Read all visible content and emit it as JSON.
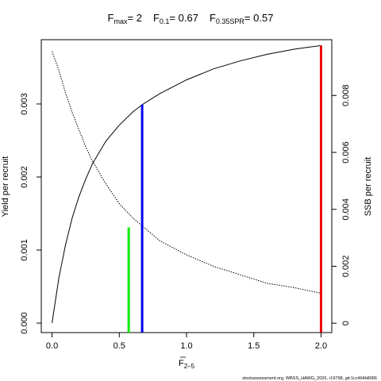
{
  "chart_data": {
    "type": "line",
    "title": {
      "fmax": {
        "symbol": "F",
        "sub": "max",
        "value": "= 2"
      },
      "f01": {
        "symbol": "F",
        "sub": "0.1",
        "value": "= 0.67"
      },
      "fspr": {
        "symbol": "F",
        "sub": "0.35SPR",
        "value": "= 0.57"
      }
    },
    "xlabel": {
      "symbol": "F",
      "sub": "2–5"
    },
    "ylabel_left": "Yield per recruit",
    "ylabel_right": "SSB per recruit",
    "xlim": [
      -0.08,
      2.08
    ],
    "ylim_left": [
      -0.00013,
      0.00388
    ],
    "ylim_right": [
      -0.00033,
      0.00996
    ],
    "x_ticks": [
      {
        "value": 0,
        "label": "0.0"
      },
      {
        "value": 0.5,
        "label": "0.5"
      },
      {
        "value": 1.0,
        "label": "1.0"
      },
      {
        "value": 1.5,
        "label": "1.5"
      },
      {
        "value": 2.0,
        "label": "2.0"
      }
    ],
    "y_ticks_left": [
      {
        "value": 0,
        "label": "0.000"
      },
      {
        "value": 0.001,
        "label": "0.001"
      },
      {
        "value": 0.002,
        "label": "0.002"
      },
      {
        "value": 0.003,
        "label": "0.003"
      }
    ],
    "y_ticks_right": [
      {
        "value": 0,
        "label": "0"
      },
      {
        "value": 0.002,
        "label": "0.002"
      },
      {
        "value": 0.004,
        "label": "0.004"
      },
      {
        "value": 0.006,
        "label": "0.006"
      },
      {
        "value": 0.008,
        "label": "0.008"
      }
    ],
    "series": [
      {
        "axis": "left",
        "style": "solid",
        "color": "#000000",
        "x": [
          0,
          0.05,
          0.1,
          0.15,
          0.2,
          0.25,
          0.3,
          0.4,
          0.5,
          0.6,
          0.67,
          0.8,
          1.0,
          1.2,
          1.4,
          1.6,
          1.8,
          2.0
        ],
        "y": [
          0,
          0.00061,
          0.00107,
          0.00144,
          0.00173,
          0.00197,
          0.00218,
          0.00249,
          0.00271,
          0.00289,
          0.00299,
          0.00314,
          0.00333,
          0.00348,
          0.00359,
          0.00368,
          0.00375,
          0.0038
        ]
      },
      {
        "axis": "right",
        "style": "dotted",
        "color": "#000000",
        "x": [
          0,
          0.05,
          0.1,
          0.15,
          0.2,
          0.25,
          0.3,
          0.4,
          0.5,
          0.6,
          0.7,
          0.8,
          1.0,
          1.2,
          1.4,
          1.6,
          1.8,
          2.0
        ],
        "y": [
          0.00955,
          0.0089,
          0.0081,
          0.0074,
          0.0068,
          0.0062,
          0.0057,
          0.0049,
          0.0042,
          0.0037,
          0.0033,
          0.0029,
          0.0024,
          0.002,
          0.0017,
          0.0014,
          0.00125,
          0.00105
        ]
      }
    ],
    "reference_lines": [
      {
        "name": "F0.35SPR",
        "color": "#00ee00",
        "x": 0.57,
        "y": 0.00131
      },
      {
        "name": "F0.1",
        "color": "#0000ee",
        "x": 0.67,
        "y": 0.00299
      },
      {
        "name": "Fmax",
        "color": "#ee0000",
        "x": 2.0,
        "y": 0.0038
      }
    ],
    "footer": "stockassessment.org, WBSS_HAWG_2026, r19798, git:1cc464b8066"
  }
}
